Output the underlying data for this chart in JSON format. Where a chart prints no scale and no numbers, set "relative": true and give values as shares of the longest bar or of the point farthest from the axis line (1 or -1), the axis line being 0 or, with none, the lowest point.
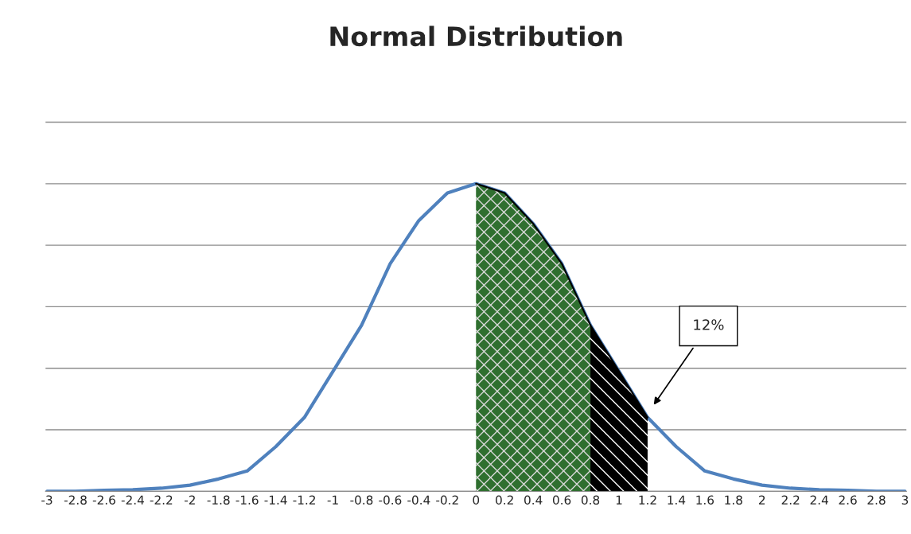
{
  "chart_data": {
    "type": "line",
    "title": "Normal Distribution",
    "relative": true,
    "grid": "y",
    "categories": [
      "-3",
      "-2.8",
      "-2.6",
      "-2.4",
      "-2.2",
      "-2",
      "-1.8",
      "-1.6",
      "-1.4",
      "-1.2",
      "-1",
      "-0.8",
      "-0.6",
      "-0.4",
      "-0.2",
      "0",
      "0.2",
      "0.4",
      "0.6",
      "0.8",
      "1",
      "1.2",
      "1.4",
      "1.6",
      "1.8",
      "2",
      "2.2",
      "2.4",
      "2.6",
      "2.8",
      "3"
    ],
    "series": [
      {
        "type": "area",
        "color": "#2f6f2f",
        "values": [
          null,
          null,
          null,
          null,
          null,
          null,
          null,
          null,
          null,
          null,
          null,
          null,
          null,
          null,
          null,
          1,
          0.97,
          0.87,
          0.74,
          0.54,
          null,
          null,
          null,
          null,
          null,
          null,
          null,
          null,
          null,
          null,
          null
        ]
      },
      {
        "type": "area",
        "color": "#000000",
        "values": [
          null,
          null,
          null,
          null,
          null,
          null,
          null,
          null,
          null,
          null,
          null,
          null,
          null,
          null,
          null,
          null,
          null,
          null,
          null,
          0.54,
          0.39,
          0.24,
          null,
          null,
          null,
          null,
          null,
          null,
          null,
          null,
          null
        ]
      },
      {
        "color": "#4f81bd",
        "values": [
          0,
          0,
          0.003,
          0.005,
          0.01,
          0.02,
          0.04,
          0.066,
          0.145,
          0.24,
          0.39,
          0.54,
          0.74,
          0.88,
          0.97,
          1,
          0.97,
          0.87,
          0.74,
          0.54,
          0.39,
          0.24,
          0.145,
          0.066,
          0.04,
          0.02,
          0.01,
          0.005,
          0.003,
          0,
          0
        ]
      }
    ],
    "annotations": [
      "12%"
    ]
  }
}
